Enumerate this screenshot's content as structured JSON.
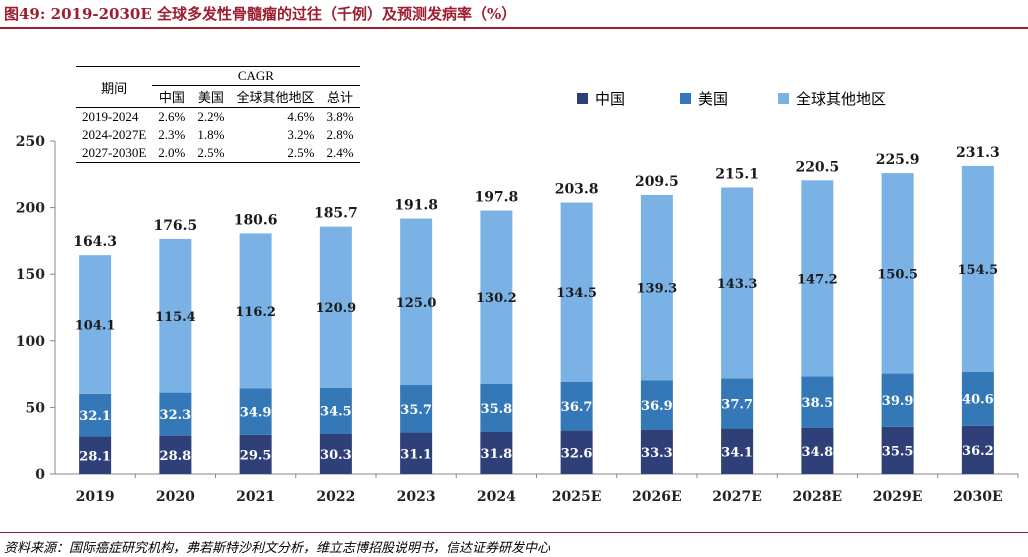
{
  "title": "图49: 2019-2030E 全球多发性骨髓瘤的过往（千例）及预测发病率（%）",
  "source": "资料来源：国际癌症研究机构，弗若斯特沙利文分析，维立志博招股说明书，信达证券研发中心",
  "colors": {
    "china": "#2f3f78",
    "usa": "#3478b8",
    "rest": "#7ab2e6",
    "accent": "#9d1e2f"
  },
  "cagr_table": {
    "group_header": "CAGR",
    "period_header": "期间",
    "columns": [
      "中国",
      "美国",
      "全球其他地区",
      "总计"
    ],
    "rows": [
      {
        "period": "2019-2024",
        "values": [
          "2.6%",
          "2.2%",
          "4.6%",
          "3.8%"
        ]
      },
      {
        "period": "2024-2027E",
        "values": [
          "2.3%",
          "1.8%",
          "3.2%",
          "2.8%"
        ]
      },
      {
        "period": "2027-2030E",
        "values": [
          "2.0%",
          "2.5%",
          "2.5%",
          "2.4%"
        ]
      }
    ]
  },
  "chart_data": {
    "type": "bar",
    "stacked": true,
    "categories": [
      "2019",
      "2020",
      "2021",
      "2022",
      "2023",
      "2024",
      "2025E",
      "2026E",
      "2027E",
      "2028E",
      "2029E",
      "2030E"
    ],
    "series": [
      {
        "name": "中国",
        "values": [
          28.1,
          28.8,
          29.5,
          30.3,
          31.1,
          31.8,
          32.6,
          33.3,
          34.1,
          34.8,
          35.5,
          36.2
        ]
      },
      {
        "name": "美国",
        "values": [
          32.1,
          32.3,
          34.9,
          34.5,
          35.7,
          35.8,
          36.7,
          36.9,
          37.7,
          38.5,
          39.9,
          40.6
        ]
      },
      {
        "name": "全球其他地区",
        "values": [
          104.1,
          115.4,
          116.2,
          120.9,
          125.0,
          130.2,
          134.5,
          139.3,
          143.3,
          147.2,
          150.5,
          154.5
        ]
      }
    ],
    "totals": [
      "164.3",
      "176.5",
      "180.6",
      "185.7",
      "191.8",
      "197.8",
      "203.8",
      "209.5",
      "215.1",
      "220.5",
      "225.9",
      "231.3"
    ],
    "ylim": [
      0,
      250
    ],
    "yticks": [
      0,
      50,
      100,
      150,
      200,
      250
    ],
    "xlabel": "",
    "ylabel": "",
    "legend_position": "top-right",
    "grid": false
  }
}
